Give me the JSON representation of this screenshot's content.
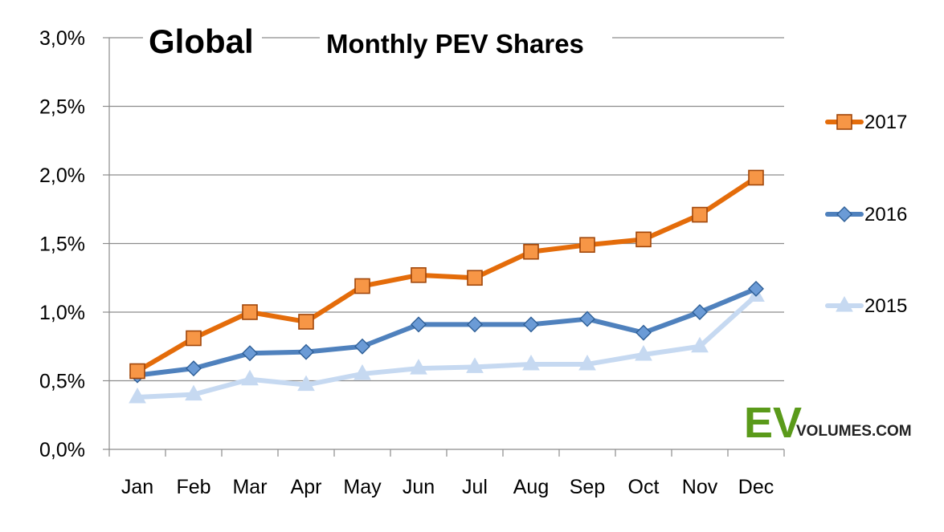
{
  "chart_data": {
    "type": "line",
    "title": "Monthly PEV Shares",
    "region_label": "Global",
    "categories": [
      "Jan",
      "Feb",
      "Mar",
      "Apr",
      "May",
      "Jun",
      "Jul",
      "Aug",
      "Sep",
      "Oct",
      "Nov",
      "Dec"
    ],
    "ylim": [
      0,
      3.0
    ],
    "yticks": [
      0,
      0.5,
      1.0,
      1.5,
      2.0,
      2.5,
      3.0
    ],
    "ytick_labels": [
      "0,0%",
      "0,5%",
      "1,0%",
      "1,5%",
      "2,0%",
      "2,5%",
      "3,0%"
    ],
    "grid": true,
    "legend_position": "right",
    "series": [
      {
        "name": "2017",
        "marker": "square",
        "color": "#e46c0a",
        "marker_fill": "#f79646",
        "values": [
          0.57,
          0.81,
          1.0,
          0.93,
          1.19,
          1.27,
          1.25,
          1.44,
          1.49,
          1.53,
          1.71,
          1.98
        ]
      },
      {
        "name": "2016",
        "marker": "diamond",
        "color": "#4f81bd",
        "marker_fill": "#6b9bd6",
        "values": [
          0.54,
          0.59,
          0.7,
          0.71,
          0.75,
          0.91,
          0.91,
          0.91,
          0.95,
          0.85,
          1.0,
          1.17
        ]
      },
      {
        "name": "2015",
        "marker": "triangle",
        "color": "#c6d9f1",
        "marker_fill": "#c6d9f1",
        "values": [
          0.38,
          0.4,
          0.51,
          0.47,
          0.55,
          0.59,
          0.6,
          0.62,
          0.62,
          0.69,
          0.75,
          1.12
        ]
      }
    ]
  },
  "brand": {
    "ev": "EV",
    "rest": "VOLUMES.COM",
    "ev_color": "#5a9a1a",
    "rest_color": "#222222"
  }
}
